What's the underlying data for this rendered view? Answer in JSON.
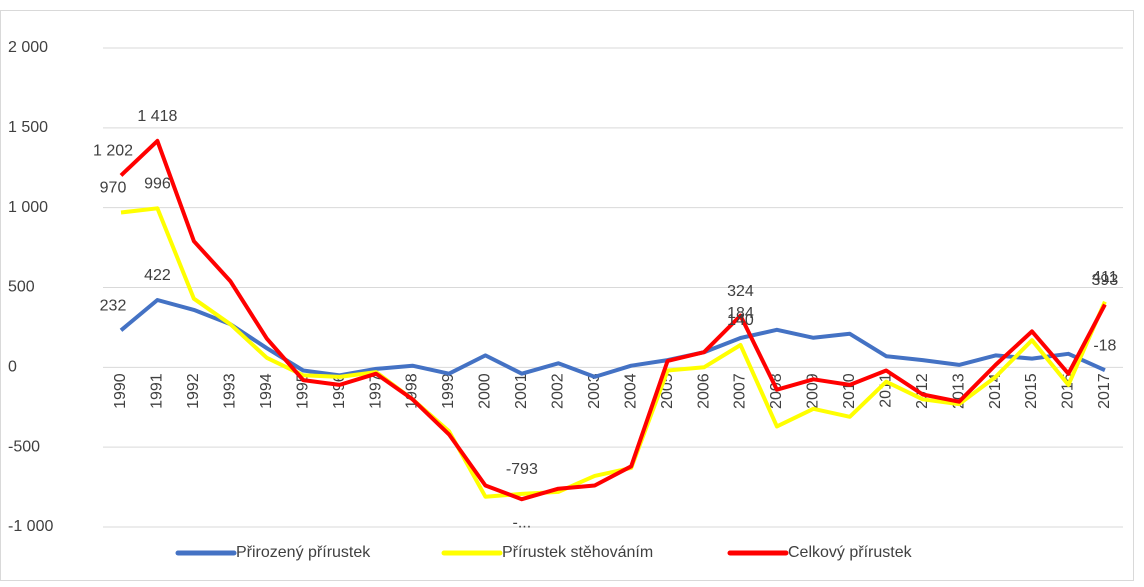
{
  "chart_data": {
    "type": "line",
    "categories": [
      "1990",
      "1991",
      "1992",
      "1993",
      "1994",
      "1995",
      "1996",
      "1997",
      "1998",
      "1999",
      "2000",
      "2001",
      "2002",
      "2003",
      "2004",
      "2005",
      "2006",
      "2007",
      "2008",
      "2009",
      "2010",
      "2011",
      "2012",
      "2013",
      "2014",
      "2015",
      "2016",
      "2017"
    ],
    "series": [
      {
        "name": "Přirozený přírustek",
        "color": "#4472c4",
        "values": [
          232,
          422,
          360,
          270,
          120,
          -20,
          -50,
          -10,
          10,
          -40,
          75,
          -40,
          25,
          -60,
          10,
          45,
          95,
          184,
          235,
          185,
          210,
          70,
          45,
          15,
          75,
          55,
          85,
          -18
        ],
        "value_labels": [
          "232",
          "422",
          null,
          null,
          null,
          null,
          null,
          null,
          null,
          null,
          null,
          null,
          null,
          null,
          null,
          null,
          null,
          "184",
          null,
          null,
          null,
          null,
          null,
          null,
          null,
          null,
          null,
          "-18"
        ]
      },
      {
        "name": "Přírustek stěhováním",
        "color": "#ffff00",
        "values": [
          970,
          996,
          430,
          270,
          60,
          -50,
          -60,
          -30,
          -200,
          -400,
          -810,
          -793,
          -780,
          -680,
          -630,
          -20,
          0,
          140,
          -370,
          -260,
          -310,
          -90,
          -200,
          -230,
          -60,
          170,
          -110,
          411
        ],
        "value_labels": [
          "970",
          "996",
          null,
          null,
          null,
          null,
          null,
          null,
          null,
          null,
          null,
          "-793",
          null,
          null,
          null,
          null,
          null,
          "140",
          null,
          null,
          null,
          null,
          null,
          null,
          null,
          null,
          null,
          "411"
        ]
      },
      {
        "name": "Celkový přírustek",
        "color": "#ff0000",
        "values": [
          1202,
          1418,
          790,
          540,
          180,
          -80,
          -110,
          -40,
          -200,
          -420,
          -740,
          -826,
          -760,
          -740,
          -620,
          40,
          95,
          324,
          -140,
          -75,
          -110,
          -20,
          -170,
          -215,
          15,
          225,
          -40,
          393
        ],
        "value_labels": [
          "1 202",
          "1 418",
          null,
          null,
          null,
          null,
          null,
          null,
          null,
          null,
          null,
          "-...",
          null,
          null,
          null,
          null,
          null,
          "324",
          null,
          null,
          null,
          null,
          null,
          null,
          null,
          null,
          null,
          "393"
        ]
      }
    ],
    "ylim": [
      -1000,
      2000
    ],
    "yticks": [
      {
        "value": -1000,
        "label": "-1 000"
      },
      {
        "value": -500,
        "label": "-500"
      },
      0,
      500,
      {
        "value": 1000,
        "label": "1 000"
      },
      {
        "value": 1500,
        "label": "1 500"
      },
      {
        "value": 2000,
        "label": "2 000"
      }
    ],
    "grid": true,
    "legend": "bottom"
  }
}
